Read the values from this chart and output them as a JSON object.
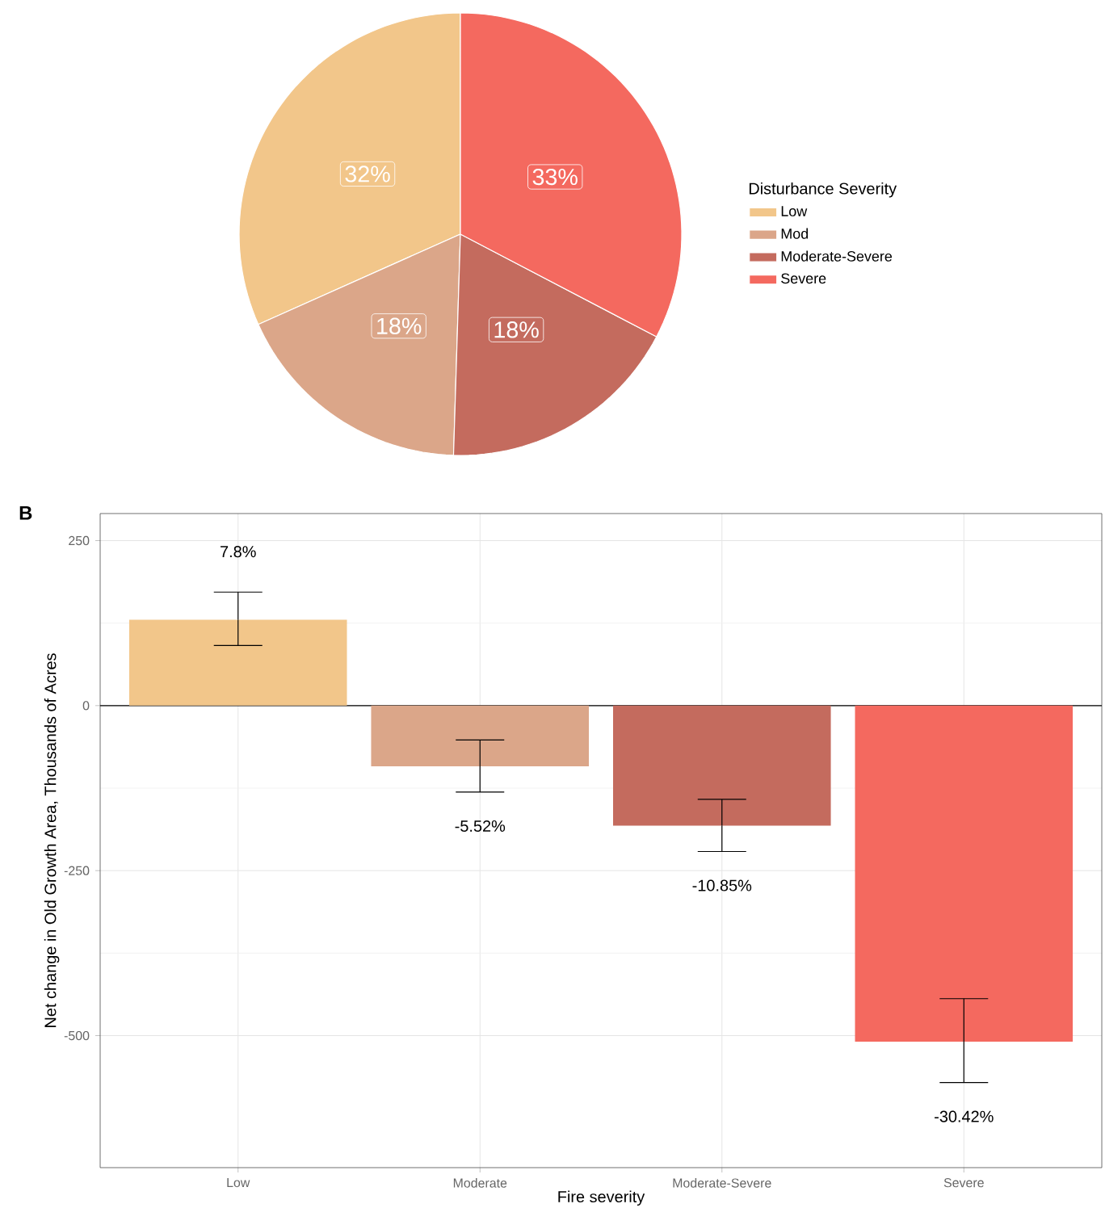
{
  "chart_data": [
    {
      "type": "pie",
      "categories": [
        "Low",
        "Mod",
        "Moderate-Severe",
        "Severe"
      ],
      "values": [
        32,
        18,
        18,
        33
      ],
      "colors": [
        "#f2c68a",
        "#dba689",
        "#c46b5e",
        "#f4695f"
      ],
      "value_labels": [
        "32%",
        "18%",
        "18%",
        "33%"
      ],
      "legend": "right",
      "legend_title": "Disturbance Severity"
    },
    {
      "type": "bar",
      "title": "B",
      "xlabel": "Fire severity",
      "ylabel": "Net change in Old Growth Area, Thousands of Acres",
      "categories": [
        "Low",
        "Moderate",
        "Moderate-Severe",
        "Severe"
      ],
      "values": [
        130,
        -92,
        -182,
        -509
      ],
      "colors": [
        "#f2c68a",
        "#dba689",
        "#c46b5e",
        "#f4695f"
      ],
      "errors": [
        [
          91,
          172
        ],
        [
          -131,
          -52
        ],
        [
          -221,
          -142
        ],
        [
          -571,
          -444
        ]
      ],
      "annotations": [
        "7.8%",
        "-5.52%",
        "-10.85%",
        "-30.42%"
      ],
      "ylim": [
        -700,
        291
      ],
      "yticks": [
        -500,
        -250,
        0,
        250
      ],
      "grid": true,
      "ref_lines": [
        {
          "axis": "y",
          "value": 0,
          "color": "#000000"
        }
      ]
    }
  ]
}
